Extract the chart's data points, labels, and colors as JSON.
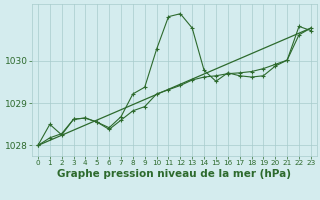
{
  "title": "Graphe pression niveau de la mer (hPa)",
  "bg_color": "#d4ecee",
  "grid_color": "#a8cccc",
  "line_color": "#2d6a2d",
  "xlim": [
    -0.5,
    23.5
  ],
  "ylim": [
    1027.75,
    1031.35
  ],
  "yticks": [
    1028,
    1029,
    1030
  ],
  "xticks": [
    0,
    1,
    2,
    3,
    4,
    5,
    6,
    7,
    8,
    9,
    10,
    11,
    12,
    13,
    14,
    15,
    16,
    17,
    18,
    19,
    20,
    21,
    22,
    23
  ],
  "series1_x": [
    0,
    1,
    2,
    3,
    4,
    5,
    6,
    7,
    8,
    9,
    10,
    11,
    12,
    13,
    14,
    15,
    16,
    17,
    18,
    19,
    20,
    21,
    22,
    23
  ],
  "series1_y": [
    1028.0,
    1028.5,
    1028.25,
    1028.62,
    1028.65,
    1028.55,
    1028.42,
    1028.68,
    1029.22,
    1029.38,
    1030.28,
    1031.05,
    1031.12,
    1030.78,
    1029.78,
    1029.52,
    1029.72,
    1029.65,
    1029.62,
    1029.65,
    1029.88,
    1030.02,
    1030.82,
    1030.72
  ],
  "series2_x": [
    0,
    1,
    2,
    3,
    4,
    5,
    6,
    7,
    8,
    9,
    10,
    11,
    12,
    13,
    14,
    15,
    16,
    17,
    18,
    19,
    20,
    21,
    22,
    23
  ],
  "series2_y": [
    1028.0,
    1028.18,
    1028.28,
    1028.62,
    1028.65,
    1028.55,
    1028.38,
    1028.6,
    1028.82,
    1028.92,
    1029.22,
    1029.32,
    1029.42,
    1029.55,
    1029.62,
    1029.65,
    1029.7,
    1029.72,
    1029.75,
    1029.82,
    1029.92,
    1030.02,
    1030.62,
    1030.78
  ],
  "series3_x": [
    0,
    23
  ],
  "series3_y": [
    1028.0,
    1030.78
  ],
  "title_fontsize": 7.5,
  "tick_fontsize": 6.5,
  "xtick_fontsize": 5.2
}
